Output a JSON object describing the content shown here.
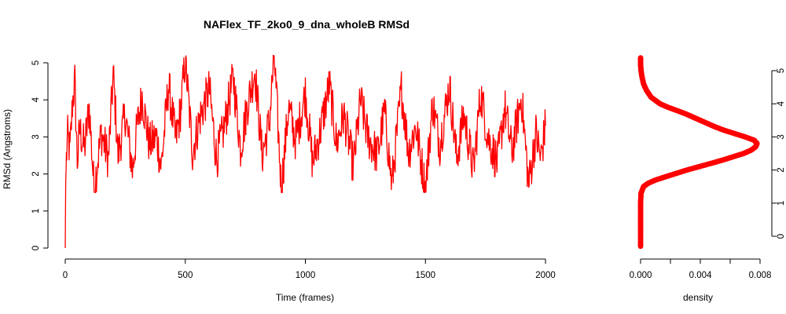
{
  "title": "NAFlex_TF_2ko0_9_dna_wholeB RMSd",
  "colors": {
    "series": "#ff0000",
    "axis": "#000000",
    "background": "#ffffff"
  },
  "chart_data": [
    {
      "type": "line",
      "xlabel": "Time (frames)",
      "ylabel": "RMSd (Angstroms)",
      "xlim": [
        0,
        2000
      ],
      "ylim": [
        0,
        5.2
      ],
      "x_ticks": [
        0,
        500,
        1000,
        1500,
        2000
      ],
      "y_ticks": [
        0,
        1,
        2,
        3,
        4,
        5
      ],
      "grid": false,
      "series": [
        {
          "color": "#ff0000",
          "x": [
            0,
            2,
            5,
            10,
            20,
            30,
            40,
            50,
            60,
            80,
            100,
            120,
            150,
            180,
            200,
            220,
            250,
            280,
            300,
            320,
            350,
            380,
            400,
            430,
            460,
            480,
            500,
            530,
            560,
            600,
            630,
            660,
            700,
            730,
            760,
            790,
            820,
            850,
            870,
            900,
            930,
            960,
            1000,
            1030,
            1060,
            1100,
            1130,
            1160,
            1200,
            1230,
            1260,
            1300,
            1330,
            1360,
            1400,
            1430,
            1460,
            1500,
            1530,
            1560,
            1600,
            1630,
            1660,
            1700,
            1730,
            1760,
            1800,
            1830,
            1860,
            1900,
            1930,
            1960,
            1980,
            2000
          ],
          "values": [
            0.0,
            1.8,
            2.4,
            3.0,
            2.6,
            3.9,
            4.5,
            2.3,
            3.2,
            2.7,
            3.8,
            1.6,
            3.1,
            2.4,
            4.7,
            2.5,
            3.6,
            2.1,
            3.3,
            4.1,
            2.8,
            3.0,
            2.2,
            4.4,
            2.9,
            3.7,
            5.1,
            2.6,
            3.5,
            4.3,
            2.4,
            3.2,
            4.6,
            2.7,
            3.9,
            4.8,
            2.5,
            3.4,
            5.2,
            1.6,
            3.8,
            2.9,
            4.2,
            2.3,
            3.1,
            4.4,
            2.8,
            3.6,
            2.2,
            4.0,
            3.0,
            2.5,
            3.7,
            1.7,
            4.3,
            2.6,
            3.3,
            1.6,
            3.9,
            2.8,
            4.4,
            2.4,
            3.6,
            2.1,
            4.2,
            3.0,
            2.3,
            3.8,
            2.6,
            4.1,
            1.7,
            3.1,
            2.4,
            3.3
          ]
        }
      ]
    },
    {
      "type": "line",
      "xlabel": "density",
      "ylabel": "",
      "xlim": [
        0,
        0.008
      ],
      "ylim": [
        0,
        5.2
      ],
      "x_ticks": [
        "0.000",
        "0.004",
        "0.008"
      ],
      "x_tick_values": [
        0,
        0.002,
        0.004,
        0.006,
        0.008
      ],
      "y_ticks": [
        0,
        1,
        2,
        3,
        4,
        5
      ],
      "grid": false,
      "series": [
        {
          "color": "#ff0000",
          "density_y": [
            -0.3,
            0.2,
            0.6,
            1.0,
            1.3,
            1.5,
            1.6,
            1.7,
            1.8,
            1.9,
            2.0,
            2.1,
            2.2,
            2.3,
            2.4,
            2.5,
            2.6,
            2.7,
            2.8,
            2.9,
            3.0,
            3.1,
            3.2,
            3.3,
            3.4,
            3.5,
            3.6,
            3.7,
            3.8,
            3.9,
            4.0,
            4.2,
            4.4,
            4.6,
            4.8,
            5.0,
            5.2,
            5.4
          ],
          "density_x": [
            0.0,
            0.0,
            0.0,
            0.0,
            3e-05,
            0.0002,
            0.0005,
            0.001,
            0.0017,
            0.0024,
            0.0031,
            0.0039,
            0.0047,
            0.0055,
            0.0062,
            0.0069,
            0.0074,
            0.0077,
            0.0078,
            0.0076,
            0.007,
            0.0063,
            0.0056,
            0.005,
            0.0045,
            0.004,
            0.0035,
            0.003,
            0.0024,
            0.0018,
            0.0013,
            0.0007,
            0.0004,
            0.0002,
            0.0001,
            3e-05,
            0.0,
            0.0
          ]
        }
      ]
    }
  ]
}
